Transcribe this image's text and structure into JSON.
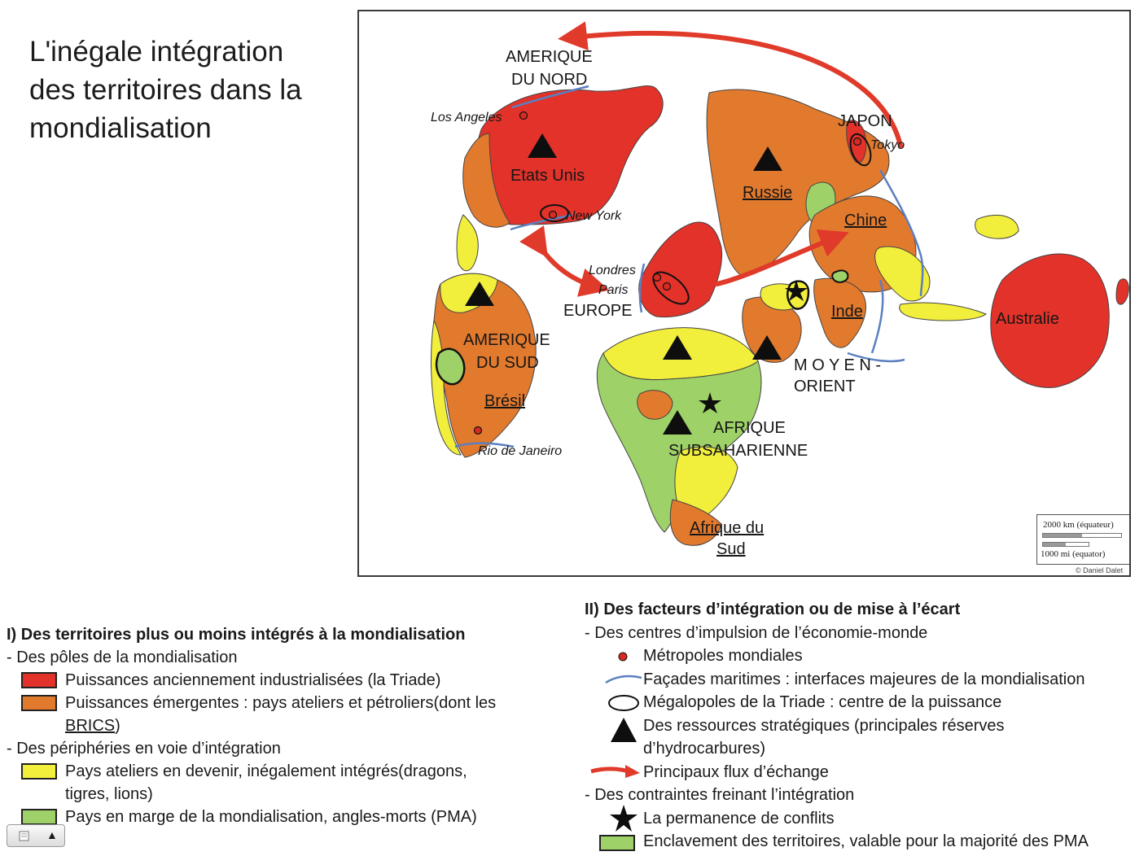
{
  "title": {
    "line1": "L'inégale intégration",
    "line2": "des territoires dans la",
    "line3": "mondialisation"
  },
  "map": {
    "region_labels": {
      "amerique_nord_1": "AMERIQUE",
      "amerique_nord_2": "DU NORD",
      "japon": "JAPON",
      "etats_unis": "Etats Unis",
      "russie": "Russie",
      "chine": "Chine",
      "europe": "EUROPE",
      "inde": "Inde",
      "australie": "Australie",
      "amerique_sud_1": "AMERIQUE",
      "amerique_sud_2": "DU SUD",
      "bresil": "Brésil",
      "moyen_orient_1": "M O Y E N -",
      "moyen_orient_2": "ORIENT",
      "afrique_sub_1": "AFRIQUE",
      "afrique_sub_2": "SUBSAHARIENNE",
      "afrique_sud_1": "Afrique du",
      "afrique_sud_2": "Sud"
    },
    "cities": {
      "los_angeles": "Los Angeles",
      "tokyo": "Tokyo",
      "new_york": "New York",
      "londres": "Londres",
      "paris": "Paris",
      "rio": "Rio de Janeiro"
    },
    "scale": {
      "km": "2000 km (équateur)",
      "mi": "1000 mi (equator)"
    },
    "credit": "© Daniel Dalet"
  },
  "legend_left": {
    "heading": "I) Des territoires plus ou moins intégrés à la mondialisation",
    "group1": "- Des pôles de la mondialisation",
    "item_red": "Puissances anciennement industrialisées (la Triade)",
    "item_orange_1": "Puissances émergentes : pays ateliers et pétroliers(dont les",
    "item_orange_2": "BRICS",
    "item_orange_3": ")",
    "group2": "- Des périphéries en voie d’intégration",
    "item_yellow_1": "Pays ateliers en devenir, inégalement intégrés(dragons,",
    "item_yellow_2": "tigres, lions)",
    "item_green": "Pays en marge de la mondialisation, angles-morts (PMA)"
  },
  "legend_right": {
    "heading": "II) Des facteurs d’intégration ou de mise à l’écart",
    "group1": "- Des centres d’impulsion de l’économie-monde",
    "item_metro": "Métropoles mondiales",
    "item_facade": "Façades maritimes : interfaces majeures de la mondialisation",
    "item_megalo": "Mégalopoles de la Triade : centre de la puissance",
    "item_ress_1": "Des ressources stratégiques (principales réserves",
    "item_ress_2": "d’hydrocarbures)",
    "item_flux": "Principaux flux d’échange",
    "group2": "- Des contraintes freinant l’intégration",
    "item_conflit": "La permanence de conflits",
    "item_enclave": "Enclavement des territoires, valable pour la majorité des PMA"
  },
  "colors": {
    "triade": "#e2322a",
    "emergent": "#e27a2e",
    "peripherie": "#f2ee3c",
    "pma": "#9ed167",
    "flux": "#e03a2a",
    "facade": "#5b7fbf"
  }
}
